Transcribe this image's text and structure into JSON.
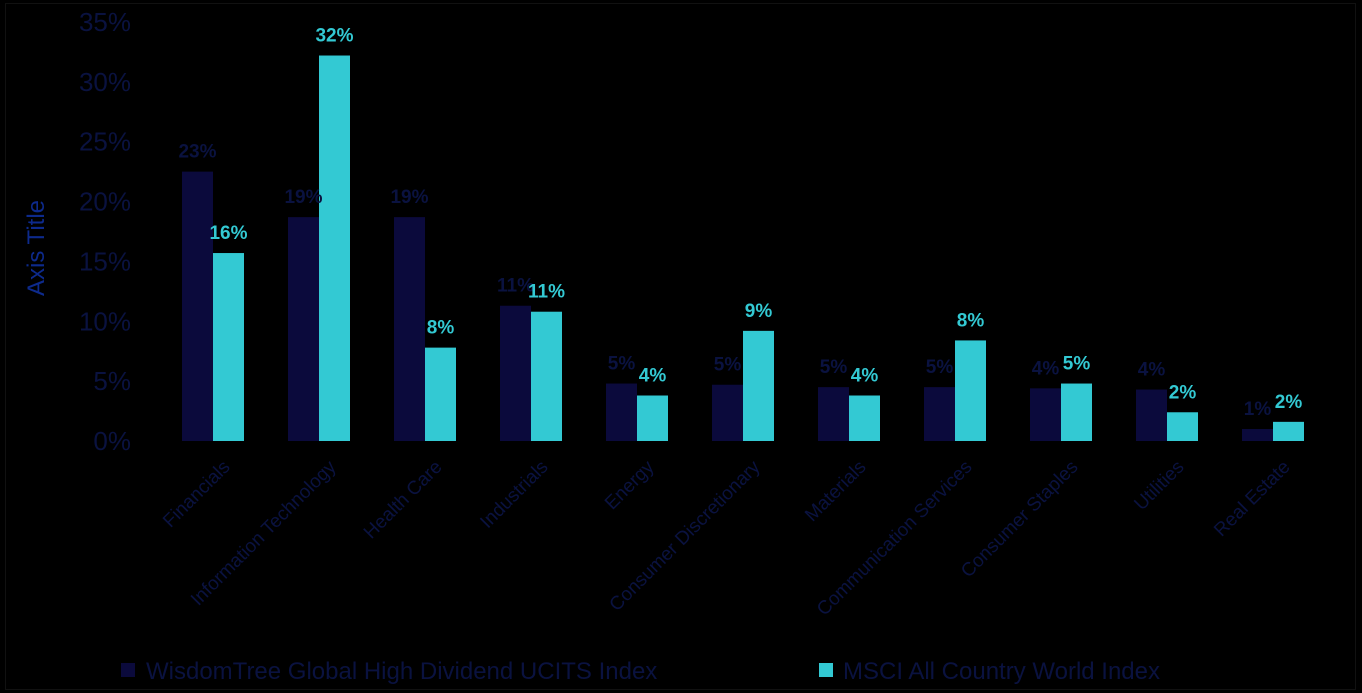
{
  "chart_data": {
    "type": "bar",
    "ylabel": "Axis Title",
    "ylim": [
      0,
      35
    ],
    "yticks": [
      "0%",
      "5%",
      "10%",
      "15%",
      "20%",
      "25%",
      "30%",
      "35%"
    ],
    "categories": [
      "Financials",
      "Information Technology",
      "Health Care",
      "Industrials",
      "Energy",
      "Consumer Discretionary",
      "Materials",
      "Communication Services",
      "Consumer Staples",
      "Utilities",
      "Real Estate"
    ],
    "series": [
      {
        "name": "WisdomTree Global High Dividend UCITS Index",
        "color": "#0b0a3c",
        "values": [
          22.5,
          18.7,
          18.7,
          11.3,
          4.8,
          4.7,
          4.5,
          4.5,
          4.4,
          4.3,
          1.0
        ],
        "labels": [
          "23%",
          "19%",
          "19%",
          "11%",
          "5%",
          "5%",
          "5%",
          "5%",
          "4%",
          "4%",
          "1%"
        ]
      },
      {
        "name": "MSCI All Country World Index",
        "color": "#33c9d3",
        "values": [
          15.7,
          32.2,
          7.8,
          10.8,
          3.8,
          9.2,
          3.8,
          8.4,
          4.8,
          2.4,
          1.6
        ],
        "labels": [
          "16%",
          "32%",
          "8%",
          "11%",
          "4%",
          "9%",
          "4%",
          "8%",
          "5%",
          "2%",
          "2%"
        ]
      }
    ],
    "legend": "bottom",
    "grid": false
  }
}
